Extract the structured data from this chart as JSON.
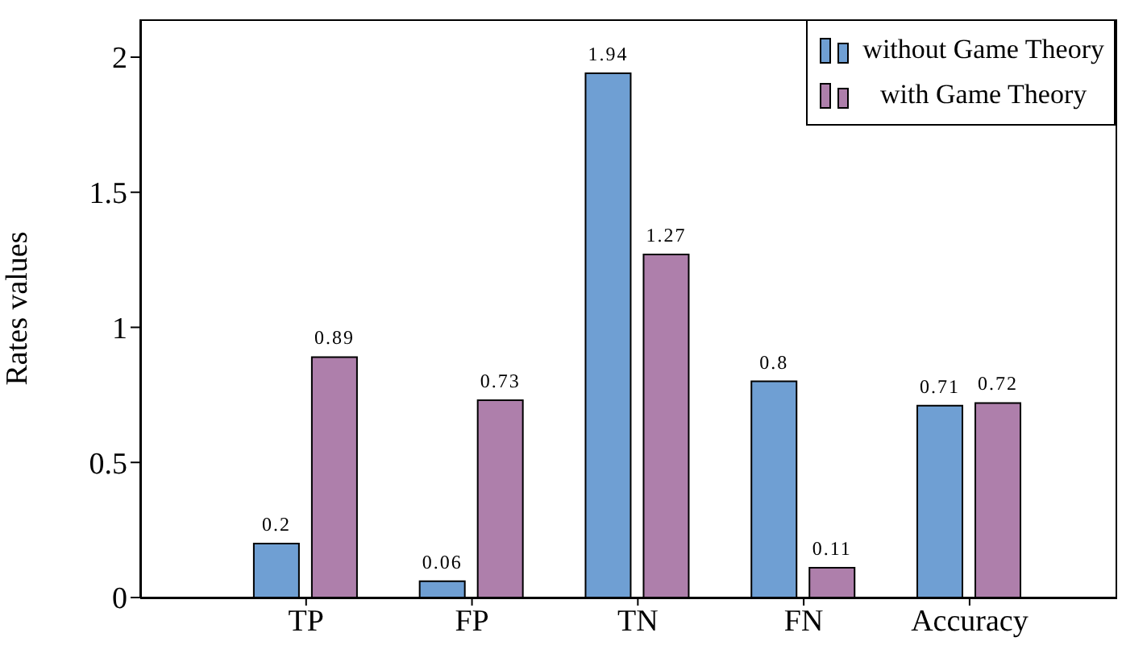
{
  "chart_data": {
    "type": "bar",
    "ylabel": "Rates values",
    "categories": [
      "TP",
      "FP",
      "TN",
      "FN",
      "Accuracy"
    ],
    "series": [
      {
        "name": "without Game Theory",
        "color": "#6f9fd3",
        "values": [
          0.2,
          0.06,
          1.94,
          0.8,
          0.71
        ]
      },
      {
        "name": "with Game Theory",
        "color": "#ae7fab",
        "values": [
          0.89,
          0.73,
          1.27,
          0.11,
          0.72
        ]
      }
    ],
    "ylim": [
      0,
      2.14
    ],
    "yticks": [
      0,
      0.5,
      1,
      1.5,
      2
    ],
    "legend": "top right",
    "data_labels": true
  }
}
